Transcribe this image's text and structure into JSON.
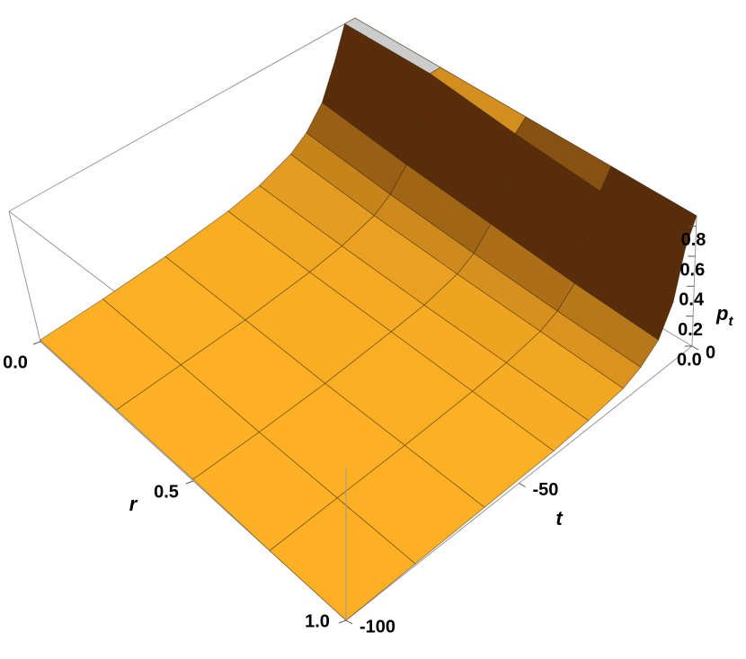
{
  "chart_data": {
    "type": "surface3d",
    "xlabel": "r",
    "ylabel": "t",
    "zlabel": "p",
    "zlabel_sub": "t",
    "r": [
      0,
      0.25,
      0.5,
      0.75,
      1
    ],
    "t": [
      -100,
      -80,
      -60,
      -40,
      -30,
      -20,
      -15,
      -10,
      -6,
      -3,
      0
    ],
    "z": [
      [
        0.01,
        0.02,
        0.04,
        0.08,
        0.12,
        0.2,
        0.28,
        0.42,
        0.65,
        0.87,
        0.87
      ],
      [
        0.01,
        0.02,
        0.03,
        0.06,
        0.09,
        0.15,
        0.22,
        0.35,
        0.58,
        0.87,
        0.87
      ],
      [
        0.01,
        0.01,
        0.02,
        0.05,
        0.07,
        0.12,
        0.18,
        0.3,
        0.5,
        0.8,
        0.87
      ],
      [
        0,
        0.01,
        0.02,
        0.04,
        0.06,
        0.1,
        0.15,
        0.25,
        0.45,
        0.75,
        0.87
      ],
      [
        0,
        0.01,
        0.02,
        0.03,
        0.05,
        0.08,
        0.13,
        0.22,
        0.4,
        0.7,
        0.87
      ]
    ],
    "xlim": [
      0,
      1
    ],
    "ylim": [
      -100,
      0
    ],
    "zlim": [
      0,
      0.87
    ],
    "xticks": [
      {
        "value": 0,
        "label": "0.0"
      },
      {
        "value": 0.5,
        "label": "0.5"
      },
      {
        "value": 1,
        "label": "1.0"
      }
    ],
    "yticks": [
      -100,
      -50,
      0
    ],
    "zticks": [
      {
        "value": 0,
        "label": "0.0"
      },
      {
        "value": 0.2,
        "label": "0.2"
      },
      {
        "value": 0.4,
        "label": "0.4"
      },
      {
        "value": 0.6,
        "label": "0.6"
      },
      {
        "value": 0.8,
        "label": "0.8"
      }
    ],
    "color": "#ffb224",
    "steep_color": "#5a2d0a",
    "cap_color": "#cccccc"
  }
}
